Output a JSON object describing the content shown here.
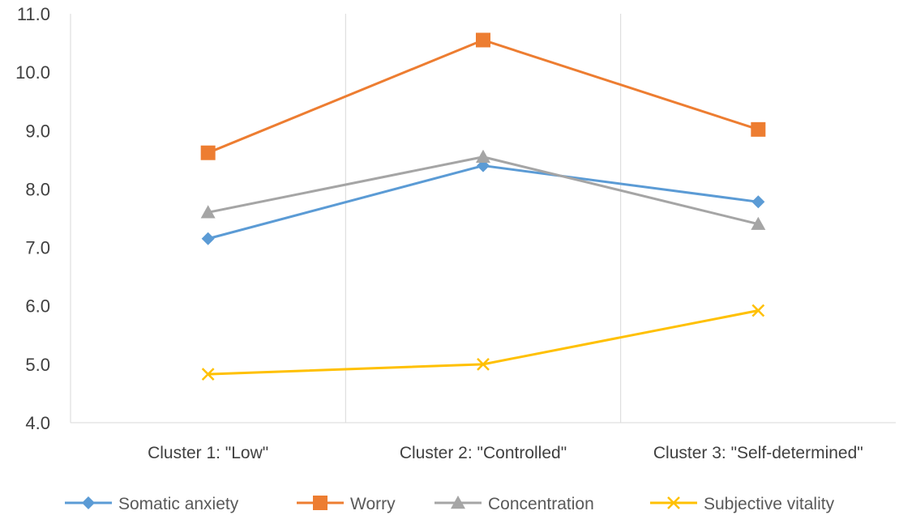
{
  "chart_data": {
    "type": "line",
    "categories": [
      "Cluster 1: \"Low\"",
      "Cluster 2: \"Controlled\"",
      "Cluster 3: \"Self-determined\""
    ],
    "ylim": [
      4.0,
      11.0
    ],
    "yticks": [
      "4.0",
      "5.0",
      "6.0",
      "7.0",
      "8.0",
      "9.0",
      "10.0",
      "11.0"
    ],
    "grid": "vertical separators between categories",
    "legend_position": "bottom",
    "series": [
      {
        "name": "Somatic anxiety",
        "values": [
          7.15,
          8.4,
          7.78
        ],
        "color": "#5B9BD5",
        "marker": "diamond"
      },
      {
        "name": "Worry",
        "values": [
          8.62,
          10.55,
          9.02
        ],
        "color": "#ED7D31",
        "marker": "square"
      },
      {
        "name": "Concentration",
        "values": [
          7.6,
          8.55,
          7.4
        ],
        "color": "#A5A5A5",
        "marker": "triangle"
      },
      {
        "name": "Subjective vitality",
        "values": [
          4.83,
          5.0,
          5.92
        ],
        "color": "#FFC000",
        "marker": "x"
      }
    ]
  }
}
